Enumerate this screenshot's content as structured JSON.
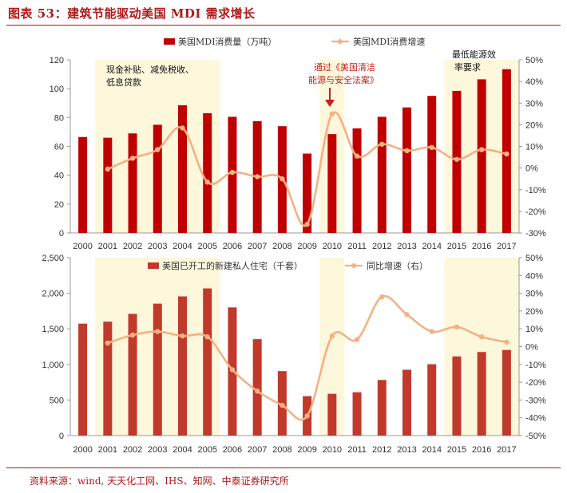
{
  "figure_title": "图表 53：建筑节能驱动美国 MDI 需求增长",
  "source": "资料来源：wind, 天天化工网、IHS、知网、中泰证券研究所",
  "colors": {
    "bar_top": "#c00000",
    "bar_bottom": "#c0392b",
    "line": "#f4b183",
    "highlight": "#fdf7dc",
    "accent": "#b01818"
  },
  "chart_data": [
    {
      "type": "bar",
      "title": "",
      "categories": [
        "2000",
        "2001",
        "2002",
        "2003",
        "2004",
        "2005",
        "2006",
        "2007",
        "2008",
        "2009",
        "2010",
        "2011",
        "2012",
        "2013",
        "2014",
        "2015",
        "2016",
        "2017"
      ],
      "series": [
        {
          "name": "美国MDI消费量（万吨）",
          "type": "bar",
          "axis": "left",
          "values": [
            66.5,
            66,
            69,
            75,
            88.5,
            83,
            80.5,
            77.5,
            74,
            55,
            68.5,
            72.5,
            80.5,
            87,
            95,
            98.5,
            106.5,
            113.5
          ]
        },
        {
          "name": "美国MDI消费增速",
          "type": "line",
          "axis": "right",
          "values": [
            null,
            -0.5,
            4.5,
            8.5,
            18.5,
            -6.5,
            -2,
            -4,
            -5,
            -26,
            25,
            5.5,
            11,
            8,
            9.5,
            4,
            8.5,
            6.5
          ]
        }
      ],
      "ylim_left": [
        0,
        120
      ],
      "yticks_left": [
        "0",
        "20",
        "40",
        "60",
        "80",
        "100",
        "120"
      ],
      "ylim_right": [
        -30,
        50
      ],
      "yticks_right": [
        "-30%",
        "-20%",
        "-10%",
        "0%",
        "10%",
        "20%",
        "30%",
        "40%",
        "50%"
      ],
      "highlight_ranges": [
        [
          "2001",
          "2005"
        ],
        [
          "2010",
          "2010"
        ],
        [
          "2015",
          "2017"
        ]
      ],
      "annotations": {
        "policy_2001": [
          "现金补贴、减免税收、",
          "低息贷款"
        ],
        "policy_2010": [
          "通过《美国清洁",
          "能源与安全法案》"
        ],
        "policy_2015": [
          "最低能源效",
          "率要求"
        ]
      }
    },
    {
      "type": "bar",
      "title": "",
      "categories": [
        "2000",
        "2001",
        "2002",
        "2003",
        "2004",
        "2005",
        "2006",
        "2007",
        "2008",
        "2009",
        "2010",
        "2011",
        "2012",
        "2013",
        "2014",
        "2015",
        "2016",
        "2017"
      ],
      "series": [
        {
          "name": "美国已开工的新建私人住宅（千套）",
          "type": "bar",
          "axis": "left",
          "values": [
            1573,
            1601,
            1710,
            1854,
            1956,
            2068,
            1801,
            1355,
            906,
            554,
            587,
            609,
            781,
            925,
            1003,
            1112,
            1174,
            1203
          ]
        },
        {
          "name": "同比增速（右）",
          "type": "line",
          "axis": "right",
          "values": [
            null,
            2,
            6.5,
            8.5,
            6,
            5.5,
            -13,
            -25,
            -33,
            -39,
            6,
            4,
            28,
            18,
            8.5,
            11,
            5.5,
            2.5
          ]
        }
      ],
      "ylim_left": [
        0,
        2500
      ],
      "yticks_left": [
        "0",
        "500",
        "1,000",
        "1,500",
        "2,000",
        "2,500"
      ],
      "ylim_right": [
        -50,
        50
      ],
      "yticks_right": [
        "-50%",
        "-40%",
        "-30%",
        "-20%",
        "-10%",
        "0%",
        "10%",
        "20%",
        "30%",
        "40%",
        "50%"
      ],
      "highlight_ranges": [
        [
          "2001",
          "2005"
        ],
        [
          "2010",
          "2010"
        ],
        [
          "2015",
          "2017"
        ]
      ]
    }
  ]
}
